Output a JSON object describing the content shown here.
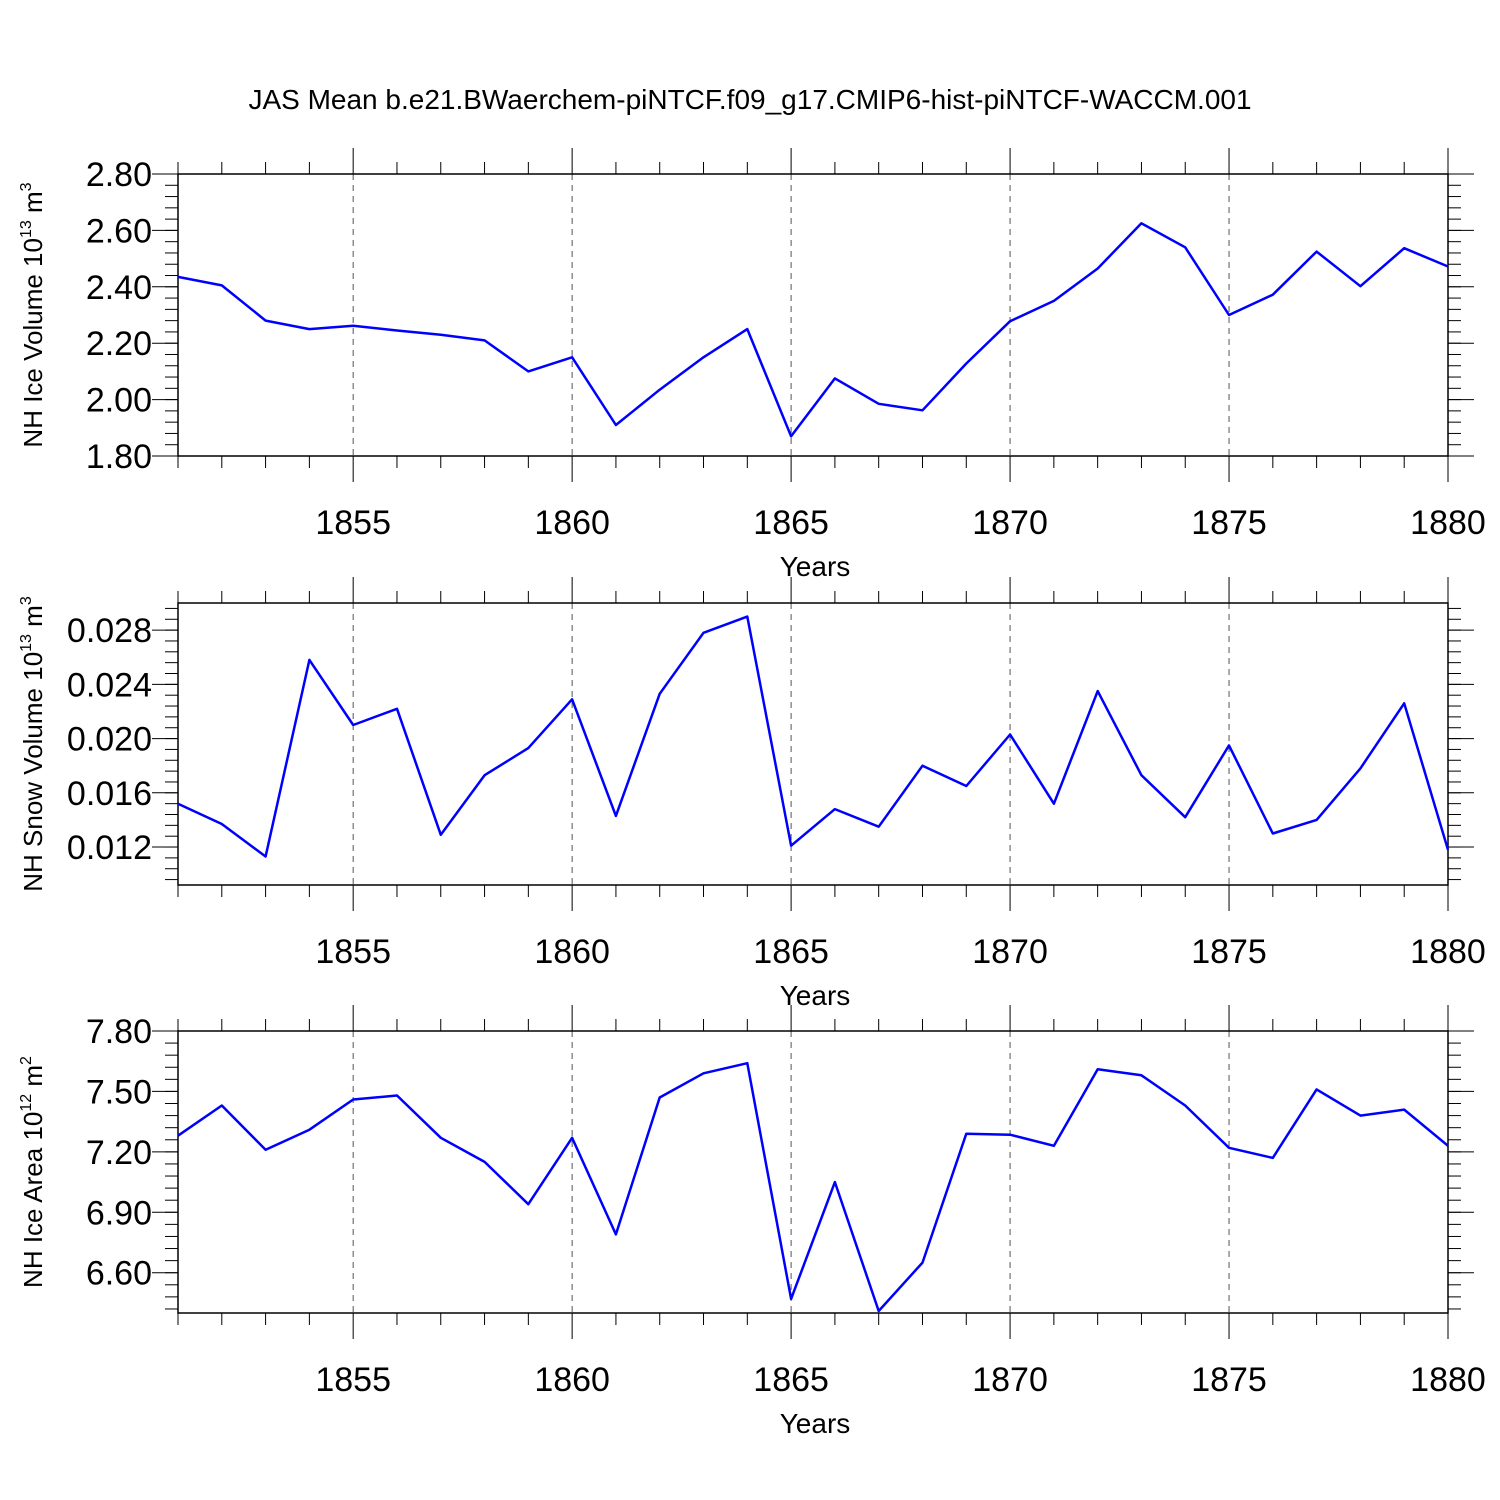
{
  "title": "JAS Mean b.e21.BWaerchem-piNTCF.f09_g17.CMIP6-hist-piNTCF-WACCM.001",
  "chart_data": [
    {
      "type": "line",
      "ylabel": "NH Ice Volume 10",
      "ylabel_sup": "13",
      "ylabel_unit": "m",
      "ylabel_unit_sup": "3",
      "xlabel": "Years",
      "xlim": [
        1851,
        1880
      ],
      "ylim": [
        1.8,
        2.8
      ],
      "yticks": [
        "1.80",
        "2.00",
        "2.20",
        "2.40",
        "2.60",
        "2.80"
      ],
      "ytick_values": [
        1.8,
        2.0,
        2.2,
        2.4,
        2.6,
        2.8
      ],
      "xticks": [
        "1855",
        "1860",
        "1865",
        "1870",
        "1875",
        "1880"
      ],
      "xtick_values": [
        1855,
        1860,
        1865,
        1870,
        1875,
        1880
      ],
      "line_color": "#0000ff",
      "x": [
        1851,
        1852,
        1853,
        1854,
        1855,
        1856,
        1857,
        1858,
        1859,
        1860,
        1861,
        1862,
        1863,
        1864,
        1865,
        1866,
        1867,
        1868,
        1869,
        1870,
        1871,
        1872,
        1873,
        1874,
        1875,
        1876,
        1877,
        1878,
        1879,
        1880
      ],
      "values": [
        2.435,
        2.405,
        2.28,
        2.25,
        2.262,
        2.245,
        2.23,
        2.21,
        2.1,
        2.15,
        1.91,
        2.035,
        2.15,
        2.25,
        1.87,
        2.075,
        1.985,
        1.962,
        2.128,
        2.278,
        2.35,
        2.465,
        2.625,
        2.54,
        2.3,
        2.372,
        2.525,
        2.402,
        2.537,
        2.472
      ]
    },
    {
      "type": "line",
      "ylabel": "NH Snow Volume 10",
      "ylabel_sup": "13",
      "ylabel_unit": "m",
      "ylabel_unit_sup": "3",
      "xlabel": "Years",
      "xlim": [
        1851,
        1880
      ],
      "ylim": [
        0.0092,
        0.03
      ],
      "yticks": [
        "0.012",
        "0.016",
        "0.020",
        "0.024",
        "0.028"
      ],
      "ytick_values": [
        0.012,
        0.016,
        0.02,
        0.024,
        0.028
      ],
      "xticks": [
        "1855",
        "1860",
        "1865",
        "1870",
        "1875",
        "1880"
      ],
      "xtick_values": [
        1855,
        1860,
        1865,
        1870,
        1875,
        1880
      ],
      "line_color": "#0000ff",
      "x": [
        1851,
        1852,
        1853,
        1854,
        1855,
        1856,
        1857,
        1858,
        1859,
        1860,
        1861,
        1862,
        1863,
        1864,
        1865,
        1866,
        1867,
        1868,
        1869,
        1870,
        1871,
        1872,
        1873,
        1874,
        1875,
        1876,
        1877,
        1878,
        1879,
        1880
      ],
      "values": [
        0.0152,
        0.0137,
        0.0113,
        0.0258,
        0.021,
        0.0222,
        0.0129,
        0.0173,
        0.0193,
        0.0229,
        0.0143,
        0.0233,
        0.0278,
        0.029,
        0.0121,
        0.0148,
        0.0135,
        0.018,
        0.0165,
        0.0203,
        0.0152,
        0.0235,
        0.0173,
        0.0142,
        0.0195,
        0.013,
        0.014,
        0.0178,
        0.0226,
        0.0118
      ]
    },
    {
      "type": "line",
      "ylabel": "NH Ice Area 10",
      "ylabel_sup": "12",
      "ylabel_unit": "m",
      "ylabel_unit_sup": "2",
      "xlabel": "Years",
      "xlim": [
        1851,
        1880
      ],
      "ylim": [
        6.4,
        7.8
      ],
      "yticks": [
        "6.60",
        "6.90",
        "7.20",
        "7.50",
        "7.80"
      ],
      "ytick_values": [
        6.6,
        6.9,
        7.2,
        7.5,
        7.8
      ],
      "xticks": [
        "1855",
        "1860",
        "1865",
        "1870",
        "1875",
        "1880"
      ],
      "xtick_values": [
        1855,
        1860,
        1865,
        1870,
        1875,
        1880
      ],
      "line_color": "#0000ff",
      "x": [
        1851,
        1852,
        1853,
        1854,
        1855,
        1856,
        1857,
        1858,
        1859,
        1860,
        1861,
        1862,
        1863,
        1864,
        1865,
        1866,
        1867,
        1868,
        1869,
        1870,
        1871,
        1872,
        1873,
        1874,
        1875,
        1876,
        1877,
        1878,
        1879,
        1880
      ],
      "values": [
        7.28,
        7.43,
        7.21,
        7.31,
        7.46,
        7.48,
        7.27,
        7.15,
        6.94,
        7.27,
        6.79,
        7.47,
        7.59,
        7.64,
        6.47,
        7.05,
        6.41,
        6.65,
        7.29,
        7.285,
        7.23,
        7.61,
        7.58,
        7.43,
        7.22,
        7.17,
        7.51,
        7.38,
        7.41,
        7.23
      ]
    }
  ]
}
